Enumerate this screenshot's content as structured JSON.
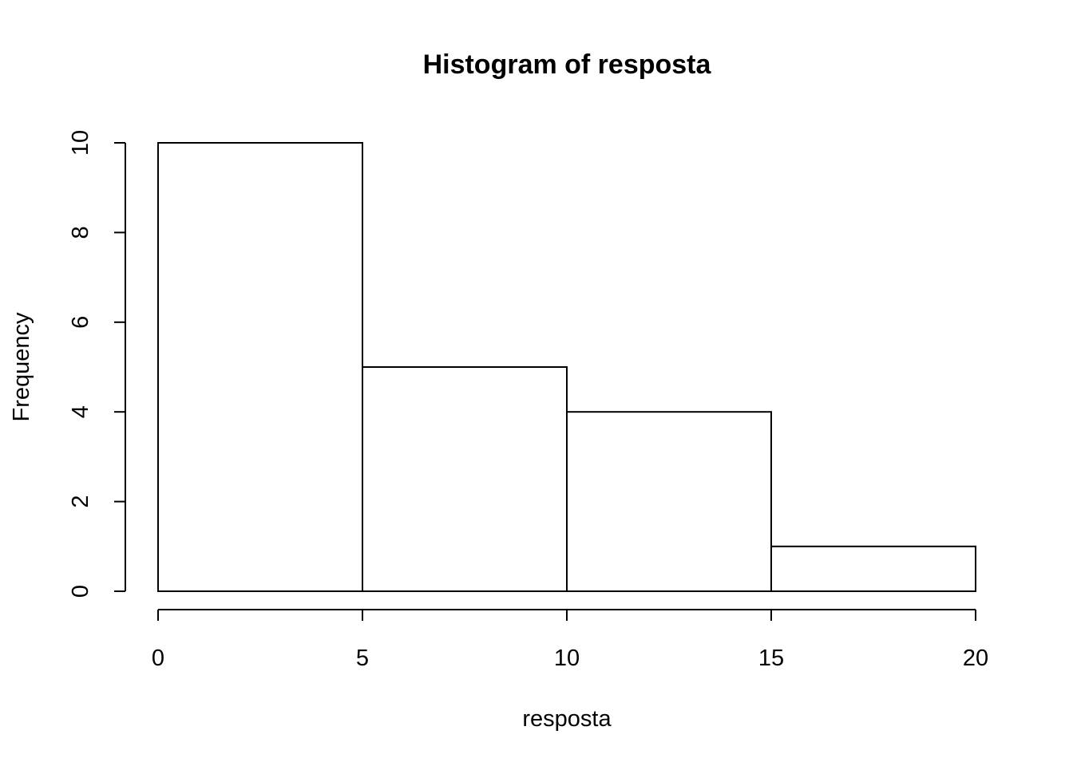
{
  "chart_data": {
    "type": "bar",
    "title": "Histogram of resposta",
    "xlabel": "resposta",
    "ylabel": "Frequency",
    "bins": [
      {
        "start": 0,
        "end": 5,
        "count": 10
      },
      {
        "start": 5,
        "end": 10,
        "count": 5
      },
      {
        "start": 10,
        "end": 15,
        "count": 4
      },
      {
        "start": 15,
        "end": 20,
        "count": 1
      }
    ],
    "xlim": [
      0,
      20
    ],
    "ylim": [
      0,
      10
    ],
    "x_ticks": [
      "0",
      "5",
      "10",
      "15",
      "20"
    ],
    "y_ticks": [
      "0",
      "2",
      "4",
      "6",
      "8",
      "10"
    ],
    "grid": false,
    "bar_fill": "#ffffff",
    "bar_stroke": "#000000"
  }
}
